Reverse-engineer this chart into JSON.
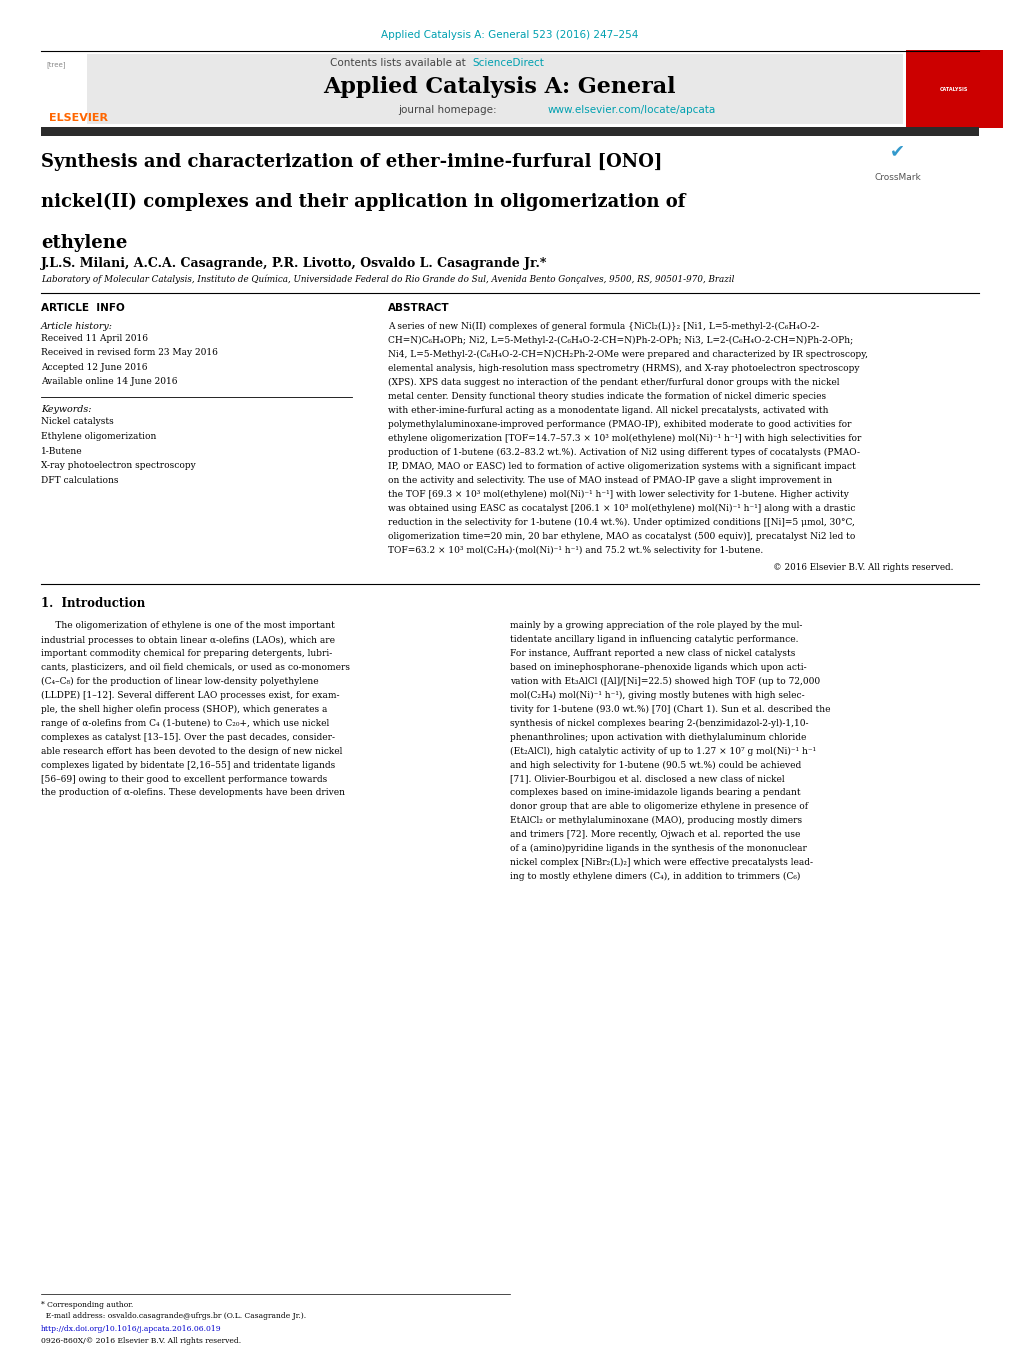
{
  "page_width": 10.2,
  "page_height": 13.51,
  "bg_color": "#ffffff",
  "top_citation": "Applied Catalysis A: General 523 (2016) 247–254",
  "top_citation_color": "#00a0b0",
  "header_bg": "#e8e8e8",
  "journal_name": "Applied Catalysis A: General",
  "sciencedirect_color": "#00a0b0",
  "journal_url": "www.elsevier.com/locate/apcata",
  "journal_url_color": "#00a0b0",
  "elsevier_color": "#ff6600",
  "dark_bar_color": "#2b2b2b",
  "article_title_line1": "Synthesis and characterization of ether-imine-furfural [ONO]",
  "article_title_line2": "nickel(II) complexes and their application in oligomerization of",
  "article_title_line3": "ethylene",
  "authors": "J.L.S. Milani, A.C.A. Casagrande, P.R. Livotto, Osvaldo L. Casagrande Jr.*",
  "affiliation": "Laboratory of Molecular Catalysis, Instituto de Química, Universidade Federal do Rio Grande do Sul, Avenida Bento Gonçalves, 9500, RS, 90501-970, Brazil",
  "section_article_info": "ARTICLE  INFO",
  "section_abstract": "ABSTRACT",
  "article_history_label": "Article history:",
  "history_items": [
    "Received 11 April 2016",
    "Received in revised form 23 May 2016",
    "Accepted 12 June 2016",
    "Available online 14 June 2016"
  ],
  "keywords_label": "Keywords:",
  "keywords": [
    "Nickel catalysts",
    "Ethylene oligomerization",
    "1-Butene",
    "X-ray photoelectron spectroscopy",
    "DFT calculations"
  ],
  "abstract_lines": [
    "A series of new Ni(II) complexes of general formula {NiCl₂(L)}₂ [Ni1, L=5-methyl-2-(C₆H₄O-2-",
    "CH=N)C₆H₄OPh; Ni2, L=5-Methyl-2-(C₆H₄O-2-CH=N)Ph-2-OPh; Ni3, L=2-(C₆H₄O-2-CH=N)Ph-2-OPh;",
    "Ni4, L=5-Methyl-2-(C₆H₄O-2-CH=N)CH₂Ph-2-OMe were prepared and characterized by IR spectroscopy,",
    "elemental analysis, high-resolution mass spectrometry (HRMS), and X-ray photoelectron spectroscopy",
    "(XPS). XPS data suggest no interaction of the pendant ether/furfural donor groups with the nickel",
    "metal center. Density functional theory studies indicate the formation of nickel dimeric species",
    "with ether-imine-furfural acting as a monodentate ligand. All nickel precatalysts, activated with",
    "polymethylaluminoxane-improved performance (PMAO-IP), exhibited moderate to good activities for",
    "ethylene oligomerization [TOF=14.7–57.3 × 10³ mol(ethylene) mol(Ni)⁻¹ h⁻¹] with high selectivities for",
    "production of 1-butene (63.2–83.2 wt.%). Activation of Ni2 using different types of cocatalysts (PMAO-",
    "IP, DMAO, MAO or EASC) led to formation of active oligomerization systems with a significant impact",
    "on the activity and selectivity. The use of MAO instead of PMAO-IP gave a slight improvement in",
    "the TOF [69.3 × 10³ mol(ethylene) mol(Ni)⁻¹ h⁻¹] with lower selectivity for 1-butene. Higher activity",
    "was obtained using EASC as cocatalyst [206.1 × 10³ mol(ethylene) mol(Ni)⁻¹ h⁻¹] along with a drastic",
    "reduction in the selectivity for 1-butene (10.4 wt.%). Under optimized conditions [[Ni]=5 μmol, 30°C,",
    "oligomerization time=20 min, 20 bar ethylene, MAO as cocatalyst (500 equiv)], precatalyst Ni2 led to",
    "TOF=63.2 × 10³ mol(C₂H₄)·(mol(Ni)⁻¹ h⁻¹) and 75.2 wt.% selectivity for 1-butene."
  ],
  "copyright": "© 2016 Elsevier B.V. All rights reserved.",
  "section1_title": "1.  Introduction",
  "intro1_lines": [
    "     The oligomerization of ethylene is one of the most important",
    "industrial processes to obtain linear α-olefins (LAOs), which are",
    "important commodity chemical for preparing detergents, lubri-",
    "cants, plasticizers, and oil field chemicals, or used as co-monomers",
    "(C₄–C₈) for the production of linear low-density polyethylene",
    "(LLDPE) [1–12]. Several different LAO processes exist, for exam-",
    "ple, the shell higher olefin process (SHOP), which generates a",
    "range of α-olefins from C₄ (1-butene) to C₂₀+, which use nickel",
    "complexes as catalyst [13–15]. Over the past decades, consider-",
    "able research effort has been devoted to the design of new nickel",
    "complexes ligated by bidentate [2,16–55] and tridentate ligands",
    "[56–69] owing to their good to excellent performance towards",
    "the production of α-olefins. These developments have been driven"
  ],
  "intro2_lines": [
    "mainly by a growing appreciation of the role played by the mul-",
    "tidentate ancillary ligand in influencing catalytic performance.",
    "For instance, Auffrant reported a new class of nickel catalysts",
    "based on iminephosphorane–phenoxide ligands which upon acti-",
    "vation with Et₃AlCl ([Al]/[Ni]=22.5) showed high TOF (up to 72,000",
    "mol(C₂H₄) mol(Ni)⁻¹ h⁻¹), giving mostly butenes with high selec-",
    "tivity for 1-butene (93.0 wt.%) [70] (Chart 1). Sun et al. described the",
    "synthesis of nickel complexes bearing 2-(benzimidazol-2-yl)-1,10-",
    "phenanthrolines; upon activation with diethylaluminum chloride",
    "(Et₂AlCl), high catalytic activity of up to 1.27 × 10⁷ g mol(Ni)⁻¹ h⁻¹",
    "and high selectivity for 1-butene (90.5 wt.%) could be achieved",
    "[71]. Olivier-Bourbigou et al. disclosed a new class of nickel",
    "complexes based on imine-imidazole ligands bearing a pendant",
    "donor group that are able to oligomerize ethylene in presence of",
    "EtAlCl₂ or methylaluminoxane (MAO), producing mostly dimers",
    "and trimers [72]. More recently, Ojwach et al. reported the use",
    "of a (amino)pyridine ligands in the synthesis of the mononuclear",
    "nickel complex [NiBr₂(L)₂] which were effective precatalysts lead-",
    "ing to mostly ethylene dimers (C₄), in addition to trimmers (C₆)"
  ],
  "footer_corresponding": "* Corresponding author.",
  "footer_email": "  E-mail address: osvaldo.casagrande@ufrgs.br (O.L. Casagrande Jr.).",
  "footer_doi": "http://dx.doi.org/10.1016/j.apcata.2016.06.019",
  "footer_rights": "0926-860X/© 2016 Elsevier B.V. All rights reserved."
}
